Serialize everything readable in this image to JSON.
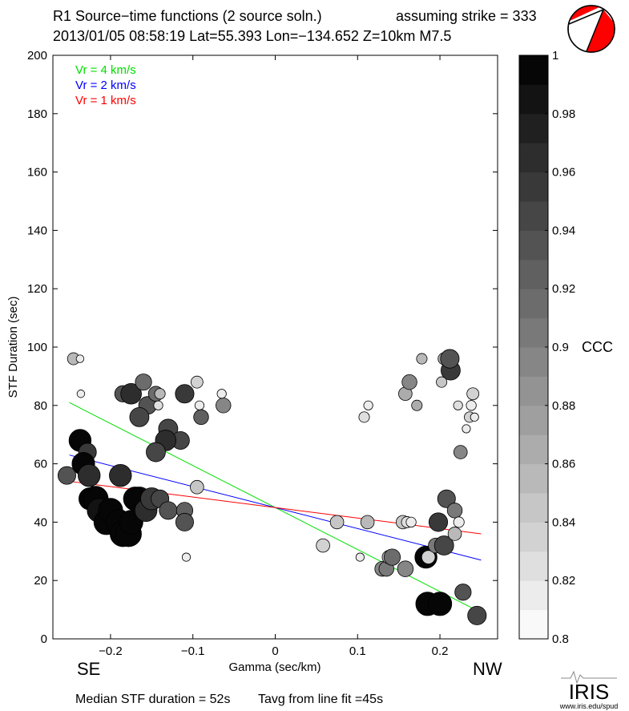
{
  "header": {
    "title": "R1 Source−time functions (2 source soln.)",
    "strike_text": "assuming strike = 333",
    "event_line": "2013/01/05 08:58:19  Lat=55.393 Lon=−134.652  Z=10km  M7.5"
  },
  "footer": {
    "median_text": "Median STF duration = 52s",
    "tavg_text": "Tavg from line fit =45s",
    "iris_logo": "IRIS",
    "iris_url": "www.iris.edu/spud"
  },
  "colors": {
    "vr4": "#00e000",
    "vr2": "#0000ff",
    "vr1": "#ff0000",
    "beachball": "#ff0000"
  },
  "chart_data": {
    "type": "scatter",
    "xlabel": "Gamma (sec/km)",
    "ylabel": "STF Duration (sec)",
    "xlim": [
      -0.27,
      0.27
    ],
    "ylim": [
      0,
      200
    ],
    "xticks": [
      -0.2,
      -0.1,
      0,
      0.1,
      0.2
    ],
    "xtick_labels": [
      "−0.2",
      "−0.1",
      "0",
      "0.1",
      "0.2"
    ],
    "yticks": [
      0,
      20,
      40,
      60,
      80,
      100,
      120,
      140,
      160,
      180,
      200
    ],
    "direction_left": "SE",
    "direction_right": "NW",
    "legend": [
      {
        "label": "Vr = 4 km/s",
        "color": "#00e000"
      },
      {
        "label": "Vr = 2 km/s",
        "color": "#0000ff"
      },
      {
        "label": "Vr = 1 km/s",
        "color": "#ff0000"
      }
    ],
    "lines": [
      {
        "name": "Vr = 4 km/s",
        "color": "#00e000",
        "x": [
          -0.25,
          0.25
        ],
        "y": [
          81,
          9
        ]
      },
      {
        "name": "Vr = 2 km/s",
        "color": "#0000ff",
        "x": [
          -0.25,
          0.25
        ],
        "y": [
          63,
          27
        ]
      },
      {
        "name": "Vr = 1 km/s",
        "color": "#ff0000",
        "x": [
          -0.25,
          0.25
        ],
        "y": [
          54,
          36
        ]
      }
    ],
    "colorbar": {
      "label": "CCC",
      "min": 0.8,
      "max": 1.0,
      "ticks": [
        0.8,
        0.82,
        0.84,
        0.86,
        0.88,
        0.9,
        0.92,
        0.94,
        0.96,
        0.98,
        1
      ],
      "tick_labels": [
        "0.8",
        "0.82",
        "0.84",
        "0.86",
        "0.88",
        "0.9",
        "0.92",
        "0.94",
        "0.96",
        "0.98",
        "1"
      ],
      "steps": 20
    },
    "points": [
      {
        "x": -0.245,
        "y": 96,
        "ccc": 0.86,
        "size": 0.25
      },
      {
        "x": -0.237,
        "y": 96,
        "ccc": 0.82,
        "size": 0.1
      },
      {
        "x": -0.236,
        "y": 84,
        "ccc": 0.82,
        "size": 0.1
      },
      {
        "x": -0.253,
        "y": 56,
        "ccc": 0.94,
        "size": 0.45
      },
      {
        "x": -0.237,
        "y": 68,
        "ccc": 0.99,
        "size": 0.6
      },
      {
        "x": -0.228,
        "y": 64,
        "ccc": 0.96,
        "size": 0.45
      },
      {
        "x": -0.233,
        "y": 60,
        "ccc": 0.99,
        "size": 0.62
      },
      {
        "x": -0.226,
        "y": 56,
        "ccc": 0.97,
        "size": 0.6
      },
      {
        "x": -0.225,
        "y": 48,
        "ccc": 0.99,
        "size": 0.6
      },
      {
        "x": -0.218,
        "y": 48,
        "ccc": 0.99,
        "size": 0.7
      },
      {
        "x": -0.214,
        "y": 44,
        "ccc": 0.98,
        "size": 0.65
      },
      {
        "x": -0.205,
        "y": 40,
        "ccc": 1.0,
        "size": 0.7
      },
      {
        "x": -0.2,
        "y": 44,
        "ccc": 0.99,
        "size": 0.68
      },
      {
        "x": -0.19,
        "y": 40,
        "ccc": 0.99,
        "size": 0.7
      },
      {
        "x": -0.185,
        "y": 36,
        "ccc": 1.0,
        "size": 0.72
      },
      {
        "x": -0.178,
        "y": 36,
        "ccc": 1.0,
        "size": 0.72
      },
      {
        "x": -0.175,
        "y": 40,
        "ccc": 0.99,
        "size": 0.65
      },
      {
        "x": -0.165,
        "y": 48,
        "ccc": 0.98,
        "size": 0.65
      },
      {
        "x": -0.17,
        "y": 48,
        "ccc": 0.99,
        "size": 0.65
      },
      {
        "x": -0.157,
        "y": 44,
        "ccc": 0.97,
        "size": 0.6
      },
      {
        "x": -0.15,
        "y": 48,
        "ccc": 0.96,
        "size": 0.6
      },
      {
        "x": -0.14,
        "y": 48,
        "ccc": 0.95,
        "size": 0.45
      },
      {
        "x": -0.13,
        "y": 44,
        "ccc": 0.94,
        "size": 0.45
      },
      {
        "x": -0.188,
        "y": 56,
        "ccc": 0.97,
        "size": 0.6
      },
      {
        "x": -0.185,
        "y": 84,
        "ccc": 0.93,
        "size": 0.4
      },
      {
        "x": -0.175,
        "y": 84,
        "ccc": 0.97,
        "size": 0.55
      },
      {
        "x": -0.16,
        "y": 88,
        "ccc": 0.91,
        "size": 0.4
      },
      {
        "x": -0.155,
        "y": 80,
        "ccc": 0.94,
        "size": 0.45
      },
      {
        "x": -0.145,
        "y": 84,
        "ccc": 0.91,
        "size": 0.35
      },
      {
        "x": -0.14,
        "y": 84,
        "ccc": 0.86,
        "size": 0.2
      },
      {
        "x": -0.142,
        "y": 80,
        "ccc": 0.83,
        "size": 0.15
      },
      {
        "x": -0.165,
        "y": 76,
        "ccc": 0.95,
        "size": 0.5
      },
      {
        "x": -0.13,
        "y": 72,
        "ccc": 0.95,
        "size": 0.5
      },
      {
        "x": -0.115,
        "y": 68,
        "ccc": 0.95,
        "size": 0.45
      },
      {
        "x": -0.133,
        "y": 68,
        "ccc": 0.97,
        "size": 0.55
      },
      {
        "x": -0.145,
        "y": 64,
        "ccc": 0.95,
        "size": 0.5
      },
      {
        "x": -0.11,
        "y": 84,
        "ccc": 0.96,
        "size": 0.48
      },
      {
        "x": -0.095,
        "y": 88,
        "ccc": 0.84,
        "size": 0.25
      },
      {
        "x": -0.092,
        "y": 80,
        "ccc": 0.82,
        "size": 0.15
      },
      {
        "x": -0.09,
        "y": 76,
        "ccc": 0.92,
        "size": 0.35
      },
      {
        "x": -0.063,
        "y": 80,
        "ccc": 0.89,
        "size": 0.35
      },
      {
        "x": -0.065,
        "y": 84,
        "ccc": 0.81,
        "size": 0.15
      },
      {
        "x": -0.095,
        "y": 52,
        "ccc": 0.85,
        "size": 0.3
      },
      {
        "x": -0.11,
        "y": 44,
        "ccc": 0.92,
        "size": 0.4
      },
      {
        "x": -0.11,
        "y": 40,
        "ccc": 0.93,
        "size": 0.45
      },
      {
        "x": -0.108,
        "y": 28,
        "ccc": 0.81,
        "size": 0.12
      },
      {
        "x": 0.058,
        "y": 32,
        "ccc": 0.84,
        "size": 0.3
      },
      {
        "x": 0.075,
        "y": 40,
        "ccc": 0.85,
        "size": 0.3
      },
      {
        "x": 0.103,
        "y": 28,
        "ccc": 0.81,
        "size": 0.12
      },
      {
        "x": 0.112,
        "y": 40,
        "ccc": 0.86,
        "size": 0.3
      },
      {
        "x": 0.108,
        "y": 76,
        "ccc": 0.83,
        "size": 0.2
      },
      {
        "x": 0.113,
        "y": 80,
        "ccc": 0.81,
        "size": 0.15
      },
      {
        "x": 0.13,
        "y": 24,
        "ccc": 0.89,
        "size": 0.35
      },
      {
        "x": 0.135,
        "y": 24,
        "ccc": 0.9,
        "size": 0.35
      },
      {
        "x": 0.138,
        "y": 28,
        "ccc": 0.86,
        "size": 0.3
      },
      {
        "x": 0.142,
        "y": 28,
        "ccc": 0.91,
        "size": 0.4
      },
      {
        "x": 0.155,
        "y": 40,
        "ccc": 0.85,
        "size": 0.3
      },
      {
        "x": 0.16,
        "y": 40,
        "ccc": 0.83,
        "size": 0.22
      },
      {
        "x": 0.165,
        "y": 40,
        "ccc": 0.82,
        "size": 0.18
      },
      {
        "x": 0.158,
        "y": 24,
        "ccc": 0.89,
        "size": 0.38
      },
      {
        "x": 0.158,
        "y": 84,
        "ccc": 0.87,
        "size": 0.3
      },
      {
        "x": 0.163,
        "y": 88,
        "ccc": 0.89,
        "size": 0.35
      },
      {
        "x": 0.172,
        "y": 80,
        "ccc": 0.87,
        "size": 0.2
      },
      {
        "x": 0.178,
        "y": 96,
        "ccc": 0.86,
        "size": 0.2
      },
      {
        "x": 0.183,
        "y": 28,
        "ccc": 1.0,
        "size": 0.6
      },
      {
        "x": 0.186,
        "y": 28,
        "ccc": 0.84,
        "size": 0.3
      },
      {
        "x": 0.185,
        "y": 12,
        "ccc": 1.0,
        "size": 0.65
      },
      {
        "x": 0.2,
        "y": 12,
        "ccc": 1.0,
        "size": 0.65
      },
      {
        "x": 0.195,
        "y": 32,
        "ccc": 0.9,
        "size": 0.35
      },
      {
        "x": 0.198,
        "y": 40,
        "ccc": 0.96,
        "size": 0.48
      },
      {
        "x": 0.205,
        "y": 32,
        "ccc": 0.95,
        "size": 0.5
      },
      {
        "x": 0.205,
        "y": 96,
        "ccc": 0.87,
        "size": 0.25
      },
      {
        "x": 0.213,
        "y": 92,
        "ccc": 0.96,
        "size": 0.5
      },
      {
        "x": 0.212,
        "y": 96,
        "ccc": 0.94,
        "size": 0.48
      },
      {
        "x": 0.202,
        "y": 88,
        "ccc": 0.85,
        "size": 0.2
      },
      {
        "x": 0.208,
        "y": 48,
        "ccc": 0.93,
        "size": 0.45
      },
      {
        "x": 0.218,
        "y": 44,
        "ccc": 0.9,
        "size": 0.35
      },
      {
        "x": 0.218,
        "y": 36,
        "ccc": 0.86,
        "size": 0.3
      },
      {
        "x": 0.223,
        "y": 40,
        "ccc": 0.82,
        "size": 0.2
      },
      {
        "x": 0.225,
        "y": 64,
        "ccc": 0.89,
        "size": 0.3
      },
      {
        "x": 0.222,
        "y": 80,
        "ccc": 0.83,
        "size": 0.15
      },
      {
        "x": 0.232,
        "y": 72,
        "ccc": 0.82,
        "size": 0.12
      },
      {
        "x": 0.236,
        "y": 76,
        "ccc": 0.84,
        "size": 0.2
      },
      {
        "x": 0.238,
        "y": 80,
        "ccc": 0.82,
        "size": 0.18
      },
      {
        "x": 0.24,
        "y": 84,
        "ccc": 0.84,
        "size": 0.25
      },
      {
        "x": 0.242,
        "y": 76,
        "ccc": 0.81,
        "size": 0.12
      },
      {
        "x": 0.228,
        "y": 16,
        "ccc": 0.93,
        "size": 0.4
      },
      {
        "x": 0.245,
        "y": 8,
        "ccc": 0.95,
        "size": 0.48
      }
    ]
  }
}
